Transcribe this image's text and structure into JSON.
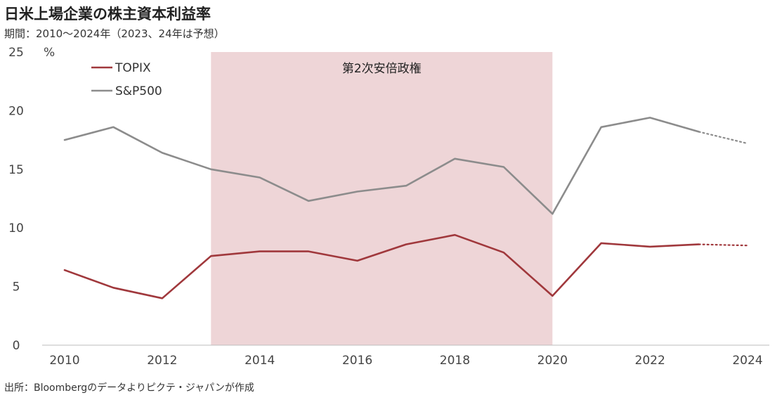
{
  "title": "日米上場企業の株主資本利益率",
  "subtitle": "期間：2010～2024年（2023、24年は予想）",
  "source": "出所：Bloombergのデータよりピクテ・ジャパンが作成",
  "chart_data": {
    "type": "line",
    "x": [
      2010,
      2011,
      2012,
      2013,
      2014,
      2015,
      2016,
      2017,
      2018,
      2019,
      2020,
      2021,
      2022,
      2023,
      2024
    ],
    "x_tick_labels": [
      "2010",
      "2012",
      "2014",
      "2016",
      "2018",
      "2020",
      "2022",
      "2024"
    ],
    "x_tick_values": [
      2010,
      2012,
      2014,
      2016,
      2018,
      2020,
      2022,
      2024
    ],
    "xlim": [
      2010,
      2024
    ],
    "ylim": [
      0,
      25
    ],
    "y_ticks": [
      0,
      5,
      10,
      15,
      20,
      25
    ],
    "y_tick_labels": [
      "0",
      "5",
      "10",
      "15",
      "20",
      "25"
    ],
    "yunit": "%",
    "grid": false,
    "legend_position": "top-left",
    "forecast_from": 2023,
    "series": [
      {
        "name": "TOPIX",
        "color": "#a0383c",
        "values": [
          6.4,
          4.9,
          4.0,
          7.6,
          8.0,
          8.0,
          7.2,
          8.6,
          9.4,
          7.9,
          4.2,
          8.7,
          8.4,
          8.6,
          8.5
        ]
      },
      {
        "name": "S&P500",
        "color": "#8c8c8c",
        "values": [
          17.5,
          18.6,
          16.4,
          15.0,
          14.3,
          12.3,
          13.1,
          13.6,
          15.9,
          15.2,
          11.2,
          18.6,
          19.4,
          18.2,
          17.2
        ]
      }
    ],
    "shaded_band": {
      "label": "第2次安倍政権",
      "from": 2013,
      "to": 2020,
      "color": "#eed5d7"
    }
  }
}
